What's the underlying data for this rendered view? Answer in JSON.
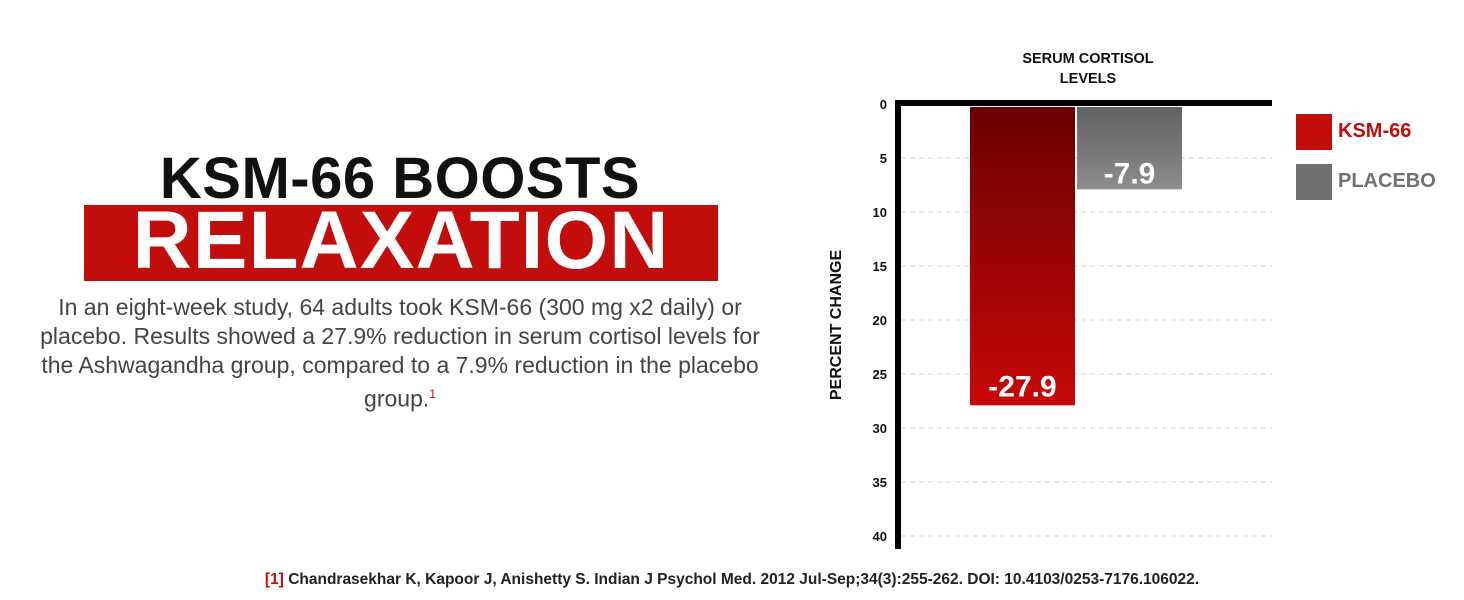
{
  "headline": {
    "line1": "KSM-66 BOOSTS",
    "line2": "RELAXATION"
  },
  "body_text": "In an eight-week study, 64 adults took KSM-66 (300 mg x2 daily) or placebo. Results showed a 27.9% reduction in serum cortisol levels for the Ashwagandha group, compared to a 7.9% reduction in the placebo group.",
  "body_footnote_marker": "1",
  "footnote": {
    "marker": "[1]",
    "citation": "Chandrasekhar K, Kapoor J, Anishetty S.  Indian J Psychol Med. 2012 Jul-Sep;34(3):255-262. DOI: 10.4103/0253-7176.106022."
  },
  "colors": {
    "accent_red": "#c30c0c",
    "ksm_gradient_top": "#6a0000",
    "ksm_gradient_bottom": "#c80808",
    "placebo_gradient_top": "#5f6163",
    "placebo_gradient_bottom": "#8a8c8e",
    "legend_placebo": "#6e7072"
  },
  "chart_data": {
    "type": "bar",
    "title": "SERUM CORTISOL LEVELS",
    "title_lines": [
      "SERUM CORTISOL",
      "LEVELS"
    ],
    "ylabel": "PERCENT CHANGE",
    "xlabel": "",
    "categories": [
      "KSM-66",
      "PLACEBO"
    ],
    "values": [
      -27.9,
      -7.9
    ],
    "data_labels": [
      "-27.9",
      "-7.9"
    ],
    "ylim": [
      0,
      40
    ],
    "y_inverted": true,
    "yticks": [
      0,
      5,
      10,
      15,
      20,
      25,
      30,
      35,
      40
    ],
    "grid": true,
    "legend_position": "right",
    "legend": [
      {
        "label": "KSM-66",
        "color": "#c30c0c"
      },
      {
        "label": "PLACEBO",
        "color": "#6e7072"
      }
    ]
  }
}
